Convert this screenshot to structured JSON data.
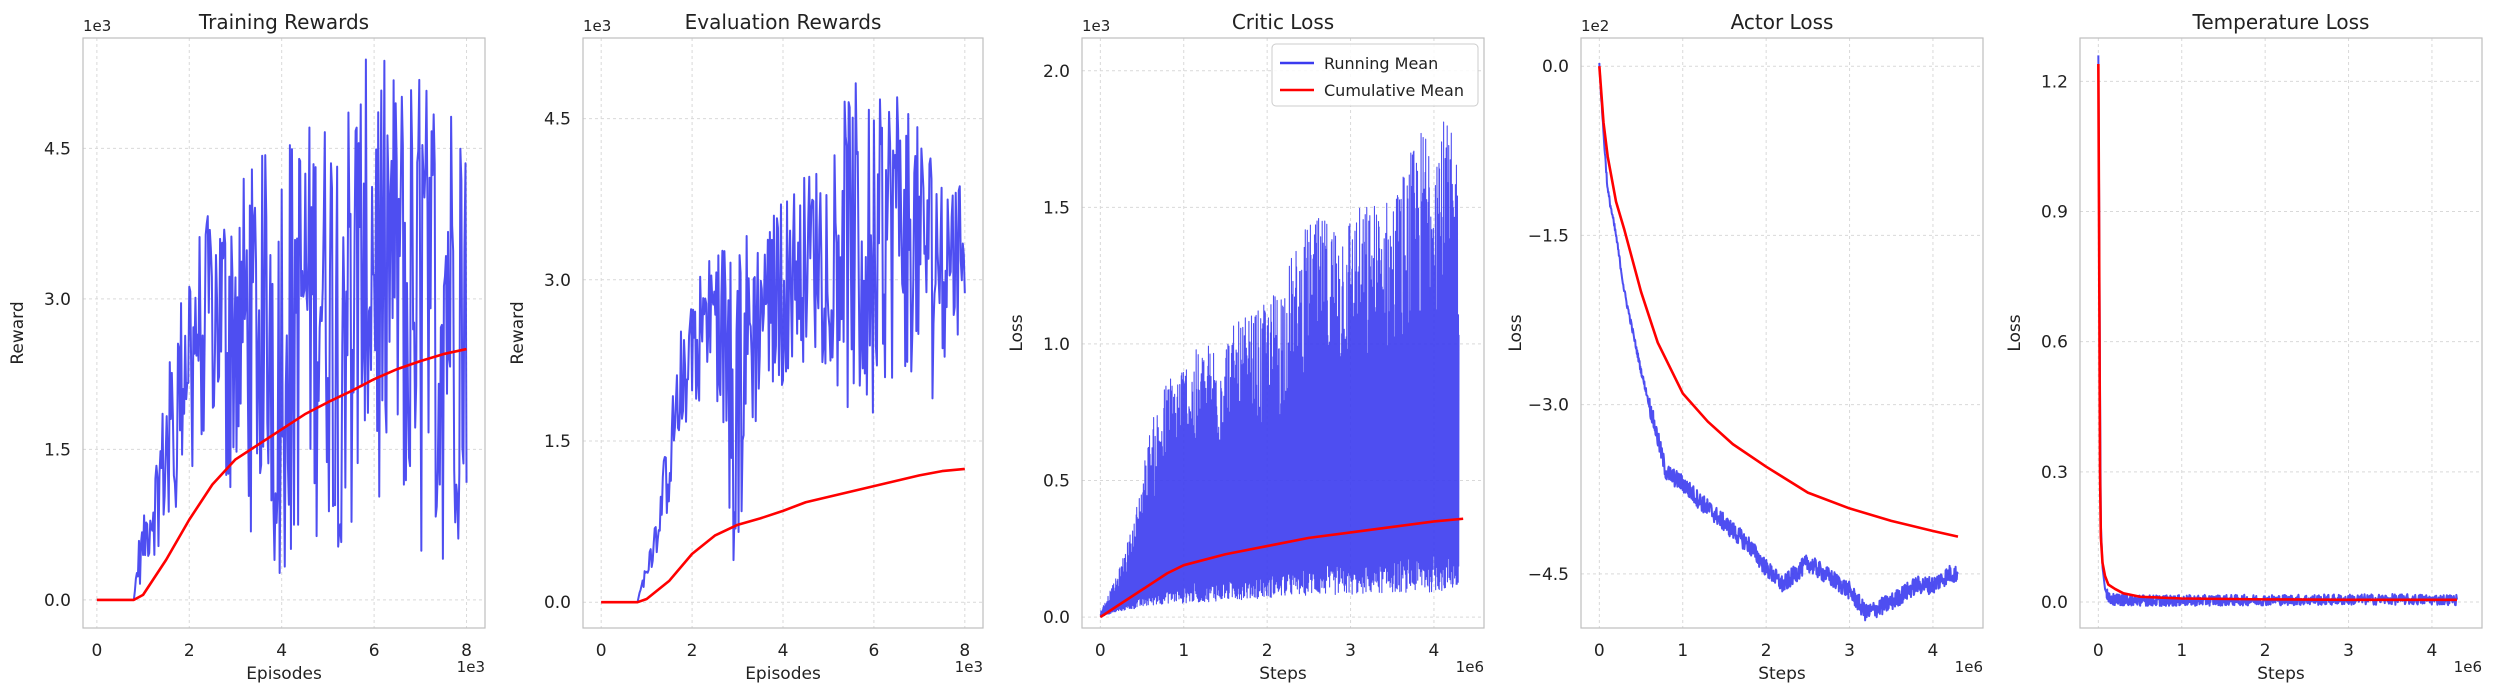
{
  "colors": {
    "running": "#3b3bef",
    "cumulative": "#ff0000",
    "grid": "#d9d9d9",
    "frame": "#bfbfbf"
  },
  "legend": {
    "placement": "top-right",
    "entries": [
      "Running Mean",
      "Cumulative Mean"
    ]
  },
  "chart_data": [
    {
      "type": "line",
      "title": "Training Rewards",
      "xlabel": "Episodes",
      "ylabel": "Reward",
      "x_multiplier": "1e3",
      "y_multiplier": "1e3",
      "xlim": [
        -0.3,
        8.4
      ],
      "ylim": [
        -0.28,
        5.6
      ],
      "xticks": [
        0,
        2,
        4,
        6,
        8
      ],
      "yticks": [
        0.0,
        1.5,
        3.0,
        4.5
      ],
      "xtick_labels": [
        "0",
        "2",
        "4",
        "6",
        "8"
      ],
      "ytick_labels": [
        "0.0",
        "1.5",
        "3.0",
        "4.5"
      ],
      "grid": true,
      "series": [
        {
          "role": "running",
          "noisy": true,
          "x": [
            0,
            0.8,
            0.9,
            1.2,
            1.5,
            1.8,
            2.0,
            2.5,
            3.0,
            3.5,
            4.0,
            4.5,
            5.0,
            5.5,
            6.0,
            6.5,
            7.0,
            7.5,
            8.0
          ],
          "upper": [
            0,
            0,
            0.6,
            1.2,
            2.2,
            3.0,
            3.6,
            3.9,
            4.2,
            4.4,
            4.7,
            4.8,
            4.9,
            5.2,
            5.5,
            5.3,
            5.3,
            5.2,
            5.3
          ],
          "lower": [
            0,
            0,
            0.1,
            0.4,
            0.5,
            1.0,
            1.2,
            1.5,
            0.7,
            0.5,
            0.0,
            0.5,
            0.5,
            0.3,
            0.6,
            0.5,
            0.3,
            0.0,
            0.6
          ]
        },
        {
          "role": "cumulative",
          "x": [
            0,
            0.8,
            1.0,
            1.5,
            2.0,
            2.5,
            3.0,
            3.5,
            4.0,
            4.5,
            5.0,
            5.5,
            6.0,
            6.5,
            7.0,
            7.5,
            8.0
          ],
          "y": [
            0,
            0,
            0.05,
            0.4,
            0.8,
            1.15,
            1.4,
            1.55,
            1.7,
            1.85,
            1.97,
            2.08,
            2.2,
            2.3,
            2.38,
            2.45,
            2.5
          ]
        }
      ]
    },
    {
      "type": "line",
      "title": "Evaluation Rewards",
      "xlabel": "Episodes",
      "ylabel": "Reward",
      "x_multiplier": "1e3",
      "y_multiplier": "1e3",
      "xlim": [
        -0.4,
        8.4
      ],
      "ylim": [
        -0.24,
        5.25
      ],
      "xticks": [
        0,
        2,
        4,
        6,
        8
      ],
      "yticks": [
        0.0,
        1.5,
        3.0,
        4.5
      ],
      "xtick_labels": [
        "0",
        "2",
        "4",
        "6",
        "8"
      ],
      "ytick_labels": [
        "0.0",
        "1.5",
        "3.0",
        "4.5"
      ],
      "grid": true,
      "series": [
        {
          "role": "running",
          "noisy": true,
          "x": [
            0,
            0.8,
            0.9,
            1.2,
            1.5,
            1.8,
            2.0,
            2.5,
            3.0,
            3.5,
            4.0,
            4.5,
            5.0,
            5.5,
            6.0,
            6.5,
            7.0,
            7.5,
            8.0
          ],
          "upper": [
            0,
            0,
            0.2,
            0.8,
            1.7,
            2.7,
            3.0,
            3.3,
            3.6,
            3.4,
            3.8,
            4.0,
            4.2,
            4.9,
            4.6,
            4.9,
            4.4,
            4.2,
            3.8
          ],
          "lower": [
            0,
            0,
            0.1,
            0.4,
            0.8,
            1.6,
            1.8,
            1.9,
            0.0,
            1.8,
            2.0,
            2.2,
            2.2,
            1.4,
            1.6,
            2.0,
            2.0,
            1.8,
            2.8
          ]
        },
        {
          "role": "cumulative",
          "x": [
            0,
            0.8,
            1.0,
            1.5,
            2.0,
            2.5,
            3.0,
            3.5,
            4.0,
            4.5,
            5.0,
            5.5,
            6.0,
            6.5,
            7.0,
            7.5,
            8.0
          ],
          "y": [
            0,
            0,
            0.03,
            0.2,
            0.45,
            0.62,
            0.72,
            0.78,
            0.85,
            0.93,
            0.98,
            1.03,
            1.08,
            1.13,
            1.18,
            1.22,
            1.24
          ]
        }
      ]
    },
    {
      "type": "line",
      "title": "Critic Loss",
      "xlabel": "Steps",
      "ylabel": "Loss",
      "x_multiplier": "1e6",
      "y_multiplier": "1e3",
      "xlim": [
        -0.22,
        4.6
      ],
      "ylim": [
        -0.04,
        2.12
      ],
      "xticks": [
        0,
        1,
        2,
        3,
        4
      ],
      "yticks": [
        0.0,
        0.5,
        1.0,
        1.5,
        2.0
      ],
      "xtick_labels": [
        "0",
        "1",
        "2",
        "3",
        "4"
      ],
      "ytick_labels": [
        "0.0",
        "0.5",
        "1.0",
        "1.5",
        "2.0"
      ],
      "grid": true,
      "legend": true,
      "series": [
        {
          "role": "running",
          "name": "Running Mean",
          "dense": true,
          "x": [
            0,
            0.2,
            0.4,
            0.6,
            0.8,
            1.0,
            1.5,
            2.0,
            2.5,
            3.0,
            3.5,
            4.0,
            4.3
          ],
          "upper": [
            0.02,
            0.15,
            0.35,
            0.7,
            0.88,
            0.95,
            1.05,
            1.15,
            1.45,
            1.5,
            1.55,
            1.9,
            1.72
          ],
          "lower": [
            0.0,
            0.02,
            0.03,
            0.04,
            0.05,
            0.05,
            0.06,
            0.07,
            0.08,
            0.08,
            0.09,
            0.09,
            0.1
          ]
        },
        {
          "role": "cumulative",
          "name": "Cumulative Mean",
          "x": [
            0,
            0.2,
            0.5,
            0.8,
            1.0,
            1.5,
            2.0,
            2.5,
            3.0,
            3.5,
            4.0,
            4.35
          ],
          "y": [
            0.0,
            0.04,
            0.1,
            0.16,
            0.19,
            0.23,
            0.26,
            0.29,
            0.31,
            0.33,
            0.35,
            0.36
          ]
        }
      ]
    },
    {
      "type": "line",
      "title": "Actor Loss",
      "xlabel": "Steps",
      "ylabel": "Loss",
      "x_multiplier": "1e6",
      "y_multiplier": "1e2",
      "xlim": [
        -0.22,
        4.6
      ],
      "ylim": [
        -4.98,
        0.25
      ],
      "xticks": [
        0,
        1,
        2,
        3,
        4
      ],
      "yticks": [
        0.0,
        -1.5,
        -3.0,
        -4.5
      ],
      "xtick_labels": [
        "0",
        "1",
        "2",
        "3",
        "4"
      ],
      "ytick_labels": [
        "0.0",
        "−1.5",
        "−3.0",
        "−4.5"
      ],
      "grid": true,
      "series": [
        {
          "role": "running",
          "jitter": true,
          "x": [
            0,
            0.05,
            0.1,
            0.2,
            0.3,
            0.5,
            0.7,
            0.8,
            1.0,
            1.2,
            1.5,
            1.8,
            2.0,
            2.2,
            2.5,
            2.8,
            3.0,
            3.2,
            3.5,
            3.8,
            4.0,
            4.2,
            4.3
          ],
          "y": [
            0.0,
            -0.6,
            -1.1,
            -1.5,
            -2.0,
            -2.7,
            -3.3,
            -3.6,
            -3.7,
            -3.85,
            -4.05,
            -4.25,
            -4.45,
            -4.6,
            -4.4,
            -4.55,
            -4.65,
            -4.85,
            -4.75,
            -4.6,
            -4.6,
            -4.5,
            -4.5
          ]
        },
        {
          "role": "cumulative",
          "x": [
            0,
            0.05,
            0.1,
            0.2,
            0.3,
            0.5,
            0.7,
            1.0,
            1.3,
            1.6,
            2.0,
            2.5,
            3.0,
            3.5,
            4.0,
            4.3
          ],
          "y": [
            0.0,
            -0.5,
            -0.8,
            -1.2,
            -1.45,
            -2.0,
            -2.45,
            -2.9,
            -3.15,
            -3.35,
            -3.55,
            -3.78,
            -3.92,
            -4.03,
            -4.12,
            -4.17
          ]
        }
      ]
    },
    {
      "type": "line",
      "title": "Temperature Loss",
      "xlabel": "Steps",
      "ylabel": "Loss",
      "x_multiplier": "1e6",
      "y_multiplier": "",
      "xlim": [
        -0.22,
        4.6
      ],
      "ylim": [
        -0.06,
        1.3
      ],
      "xticks": [
        0,
        1,
        2,
        3,
        4
      ],
      "yticks": [
        0.0,
        0.3,
        0.6,
        0.9,
        1.2
      ],
      "xtick_labels": [
        "0",
        "1",
        "2",
        "3",
        "4"
      ],
      "ytick_labels": [
        "0.0",
        "0.3",
        "0.6",
        "0.9",
        "1.2"
      ],
      "grid": true,
      "series": [
        {
          "role": "running",
          "jitter_small": true,
          "x": [
            0,
            0.01,
            0.02,
            0.03,
            0.05,
            0.08,
            0.12,
            0.2,
            0.4,
            0.8,
            1.5,
            2.5,
            3.5,
            4.3
          ],
          "y": [
            1.26,
            0.9,
            0.5,
            0.18,
            0.08,
            0.03,
            0.01,
            0.005,
            0.004,
            0.003,
            0.004,
            0.005,
            0.006,
            0.005
          ]
        },
        {
          "role": "cumulative",
          "x": [
            0,
            0.01,
            0.02,
            0.03,
            0.05,
            0.08,
            0.12,
            0.2,
            0.3,
            0.5,
            1.0,
            2.0,
            3.0,
            4.3
          ],
          "y": [
            1.24,
            0.8,
            0.3,
            0.15,
            0.09,
            0.06,
            0.04,
            0.03,
            0.02,
            0.012,
            0.008,
            0.006,
            0.005,
            0.005
          ]
        }
      ]
    }
  ]
}
